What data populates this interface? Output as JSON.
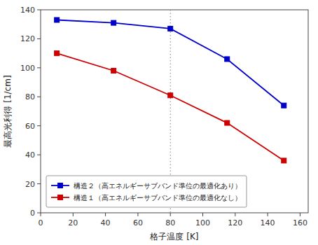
{
  "chart_data": {
    "type": "line",
    "x_label": "格子温度 [K]",
    "y_label": "最高光利得 [1/cm]",
    "x": [
      10,
      45,
      80,
      115,
      150
    ],
    "series": [
      {
        "name": "構造２（高エネルギーサブバンド準位の最適化あり）",
        "color": "#0000cc",
        "marker": "square",
        "values": [
          133,
          131,
          127,
          106,
          74
        ]
      },
      {
        "name": "構造１（高エネルギーサブバンド準位の最適化なし）",
        "color": "#cc0000",
        "marker": "square",
        "values": [
          110,
          98,
          81,
          62,
          36
        ]
      }
    ],
    "vlines": [
      80
    ],
    "xlim": [
      0,
      165
    ],
    "ylim": [
      0,
      140
    ],
    "xticks": [
      0,
      20,
      40,
      60,
      80,
      100,
      120,
      140,
      160
    ],
    "yticks": [
      0,
      20,
      40,
      60,
      80,
      100,
      120,
      140
    ],
    "grid": false,
    "legend": "lower left"
  }
}
